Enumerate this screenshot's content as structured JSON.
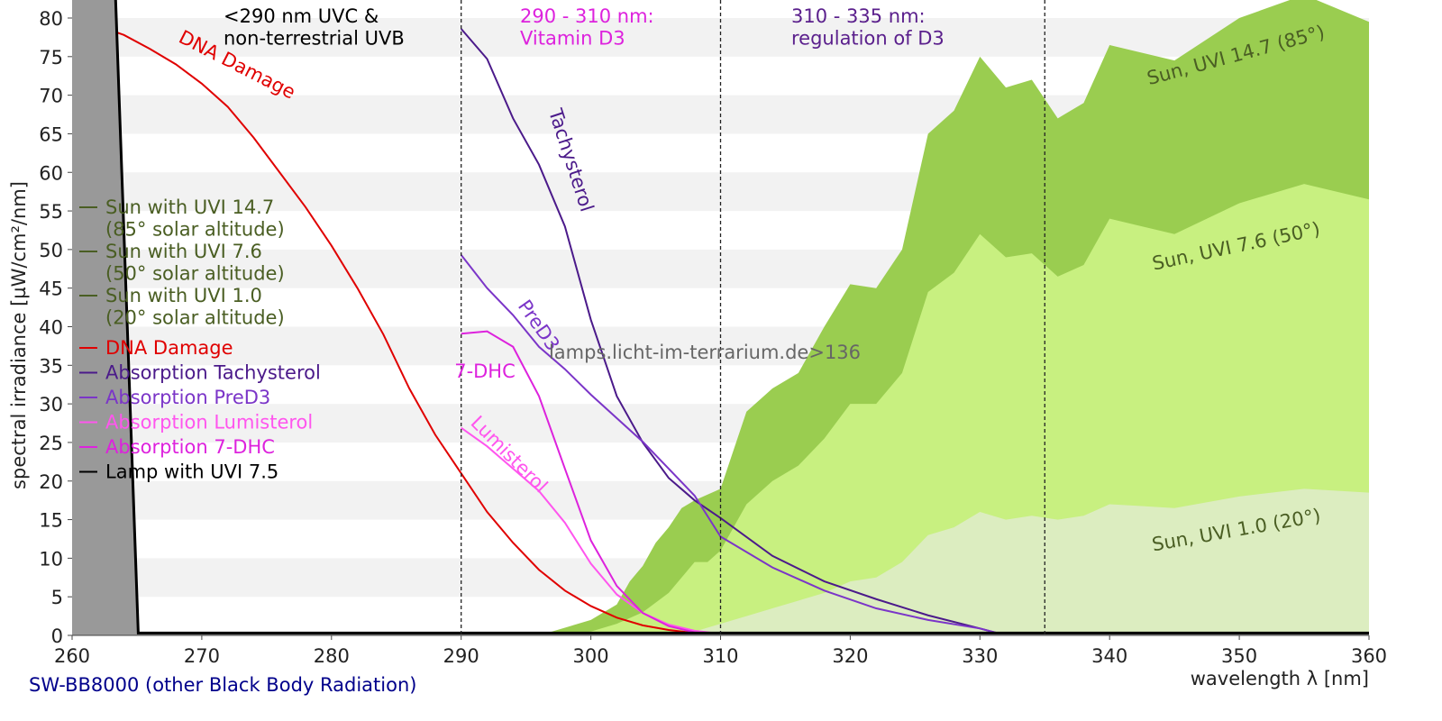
{
  "chart_data": {
    "type": "area-line",
    "x_label": "wavelength λ [nm]",
    "y_label": "spectral irradiance [µW/cm²/nm]",
    "footer": "SW-BB8000 (other Black Body Radiation)",
    "watermark": "lamps.licht-im-terrarium.de>136",
    "xlim": [
      260,
      360
    ],
    "ylim": [
      0,
      82
    ],
    "xticks": [
      260,
      270,
      280,
      290,
      300,
      310,
      320,
      330,
      340,
      350,
      360
    ],
    "yticks": [
      0,
      5,
      10,
      15,
      20,
      25,
      30,
      35,
      40,
      45,
      50,
      55,
      60,
      65,
      70,
      75,
      80
    ],
    "grid_bands": true,
    "band_color": "#f2f2f2",
    "vlines": [
      290,
      310,
      335
    ],
    "series": [
      {
        "name": "Sun with UVI 14.7\n(85° solar altitude)",
        "style": "area",
        "color": "#9acd50",
        "label_color": "#4a5e23",
        "x": [
          296,
          298,
          300,
          302,
          303,
          304,
          305,
          306,
          307,
          308,
          310,
          312,
          314,
          316,
          318,
          320,
          322,
          324,
          326,
          328,
          330,
          332,
          334,
          336,
          338,
          340,
          345,
          350,
          355,
          360
        ],
        "values": [
          0,
          1,
          2,
          4,
          7,
          9,
          12,
          14,
          16.5,
          17.5,
          19,
          29,
          32,
          34,
          40,
          45.5,
          45,
          50,
          65,
          68,
          75,
          71,
          72,
          67,
          69,
          76.5,
          74.5,
          80,
          83,
          79.5
        ]
      },
      {
        "name": "Sun with UVI 7.6\n(50° solar altitude)",
        "style": "area",
        "color": "#c8f080",
        "label_color": "#4a5e23",
        "x": [
          298,
          300,
          302,
          304,
          306,
          308,
          309,
          310,
          312,
          314,
          316,
          318,
          320,
          322,
          324,
          326,
          328,
          330,
          332,
          334,
          336,
          338,
          340,
          345,
          350,
          355,
          360
        ],
        "values": [
          0,
          0.5,
          1.5,
          3,
          5.5,
          9.5,
          9.5,
          11,
          17,
          20,
          22,
          25.5,
          30,
          30,
          34,
          44.5,
          47,
          52,
          49,
          49.5,
          46.5,
          48,
          54,
          52,
          56,
          58.5,
          56.5
        ]
      },
      {
        "name": "Sun with UVI 1.0\n(20° solar altitude)",
        "style": "area",
        "color": "#dcedc0",
        "label_color": "#4a5e23",
        "x": [
          306,
          308,
          310,
          312,
          314,
          316,
          318,
          320,
          322,
          324,
          326,
          328,
          330,
          332,
          334,
          336,
          338,
          340,
          345,
          350,
          355,
          360
        ],
        "values": [
          0,
          0.5,
          1.5,
          2.5,
          3.5,
          4.5,
          5.5,
          7,
          7.5,
          9.5,
          13,
          14,
          16,
          15,
          15.5,
          15,
          15.5,
          17,
          16.5,
          18,
          19,
          18.5
        ]
      },
      {
        "name": "DNA Damage",
        "style": "line",
        "color": "#e00000",
        "label_color": "#e00000",
        "x": [
          260,
          262,
          264,
          266,
          268,
          270,
          272,
          274,
          276,
          278,
          280,
          282,
          284,
          286,
          288,
          290,
          292,
          294,
          296,
          298,
          300,
          302,
          304,
          306,
          308,
          310
        ],
        "values": [
          80,
          79,
          77.8,
          76,
          74,
          71.5,
          68.5,
          64.5,
          60,
          55.5,
          50.5,
          45,
          39,
          32,
          26,
          21,
          16,
          12,
          8.5,
          5.8,
          3.8,
          2.3,
          1.3,
          0.7,
          0.3,
          0.1
        ]
      },
      {
        "name": "Absorption Tachysterol",
        "style": "line",
        "color": "#4b1a8a",
        "label_color": "#4b1a8a",
        "x": [
          290,
          292,
          294,
          296,
          298,
          300,
          302,
          304,
          306,
          308,
          310,
          314,
          318,
          322,
          326,
          330,
          332
        ],
        "values": [
          78.6,
          74.7,
          67,
          61,
          53,
          40.9,
          31,
          25,
          20.4,
          17.5,
          15.2,
          10.3,
          7,
          4.7,
          2.6,
          0.9,
          0
        ]
      },
      {
        "name": "Absorption PreD3",
        "style": "line",
        "color": "#7b35c8",
        "label_color": "#7b35c8",
        "x": [
          290,
          292,
          294,
          296,
          298,
          300,
          304,
          308,
          310,
          314,
          318,
          322,
          326,
          330,
          332
        ],
        "values": [
          49.3,
          45,
          41.5,
          37.4,
          34.5,
          31.2,
          25.1,
          18.1,
          12.8,
          8.8,
          5.8,
          3.5,
          2,
          0.9,
          0
        ]
      },
      {
        "name": "Absorption Lumisterol",
        "style": "line",
        "color": "#ff55ee",
        "label_color": "#ff55ee",
        "x": [
          290,
          292,
          294,
          296,
          298,
          300,
          302,
          304,
          306,
          308,
          310
        ],
        "values": [
          26.9,
          24.5,
          21.6,
          18.7,
          14.6,
          9.3,
          5.3,
          2.9,
          1.4,
          0.6,
          0.2
        ]
      },
      {
        "name": "Absorption 7-DHC",
        "style": "line",
        "color": "#dd22dd",
        "label_color": "#dd22dd",
        "x": [
          290,
          292,
          294,
          296,
          298,
          300,
          302,
          304,
          306,
          308,
          310
        ],
        "values": [
          39.1,
          39.4,
          37.4,
          31,
          21.6,
          12.3,
          6.4,
          2.9,
          1.2,
          0.4,
          0.1
        ]
      },
      {
        "name": "Lamp with UVI 7.5",
        "style": "line",
        "color": "#000000",
        "label_color": "#000000",
        "fill": "#999999",
        "x": [
          260,
          263.3,
          265.1,
          360
        ],
        "values": [
          85,
          85,
          0.3,
          0.3
        ]
      }
    ],
    "annotations": [
      {
        "text": "DNA Damage",
        "color": "#e00000"
      },
      {
        "text": "Tachysterol",
        "color": "#4b1a8a"
      },
      {
        "text": "PreD3",
        "color": "#7b35c8"
      },
      {
        "text": "7-DHC",
        "color": "#dd22dd"
      },
      {
        "text": "Lumisterol",
        "color": "#ff55ee"
      },
      {
        "text": "Sun, UVI 14.7 (85°)",
        "color": "#4a5e23"
      },
      {
        "text": "Sun, UVI 7.6 (50°)",
        "color": "#4a5e23"
      },
      {
        "text": "Sun, UVI 1.0 (20°)",
        "color": "#4a5e23"
      },
      {
        "text": "<290 nm UVC &\nnon-terrestrial UVB",
        "color": "#000000"
      },
      {
        "text": "290 - 310 nm:\nVitamin D3",
        "color": "#dd22dd"
      },
      {
        "text": "310 - 335 nm:\nregulation of D3",
        "color": "#5a1f8c"
      }
    ]
  }
}
